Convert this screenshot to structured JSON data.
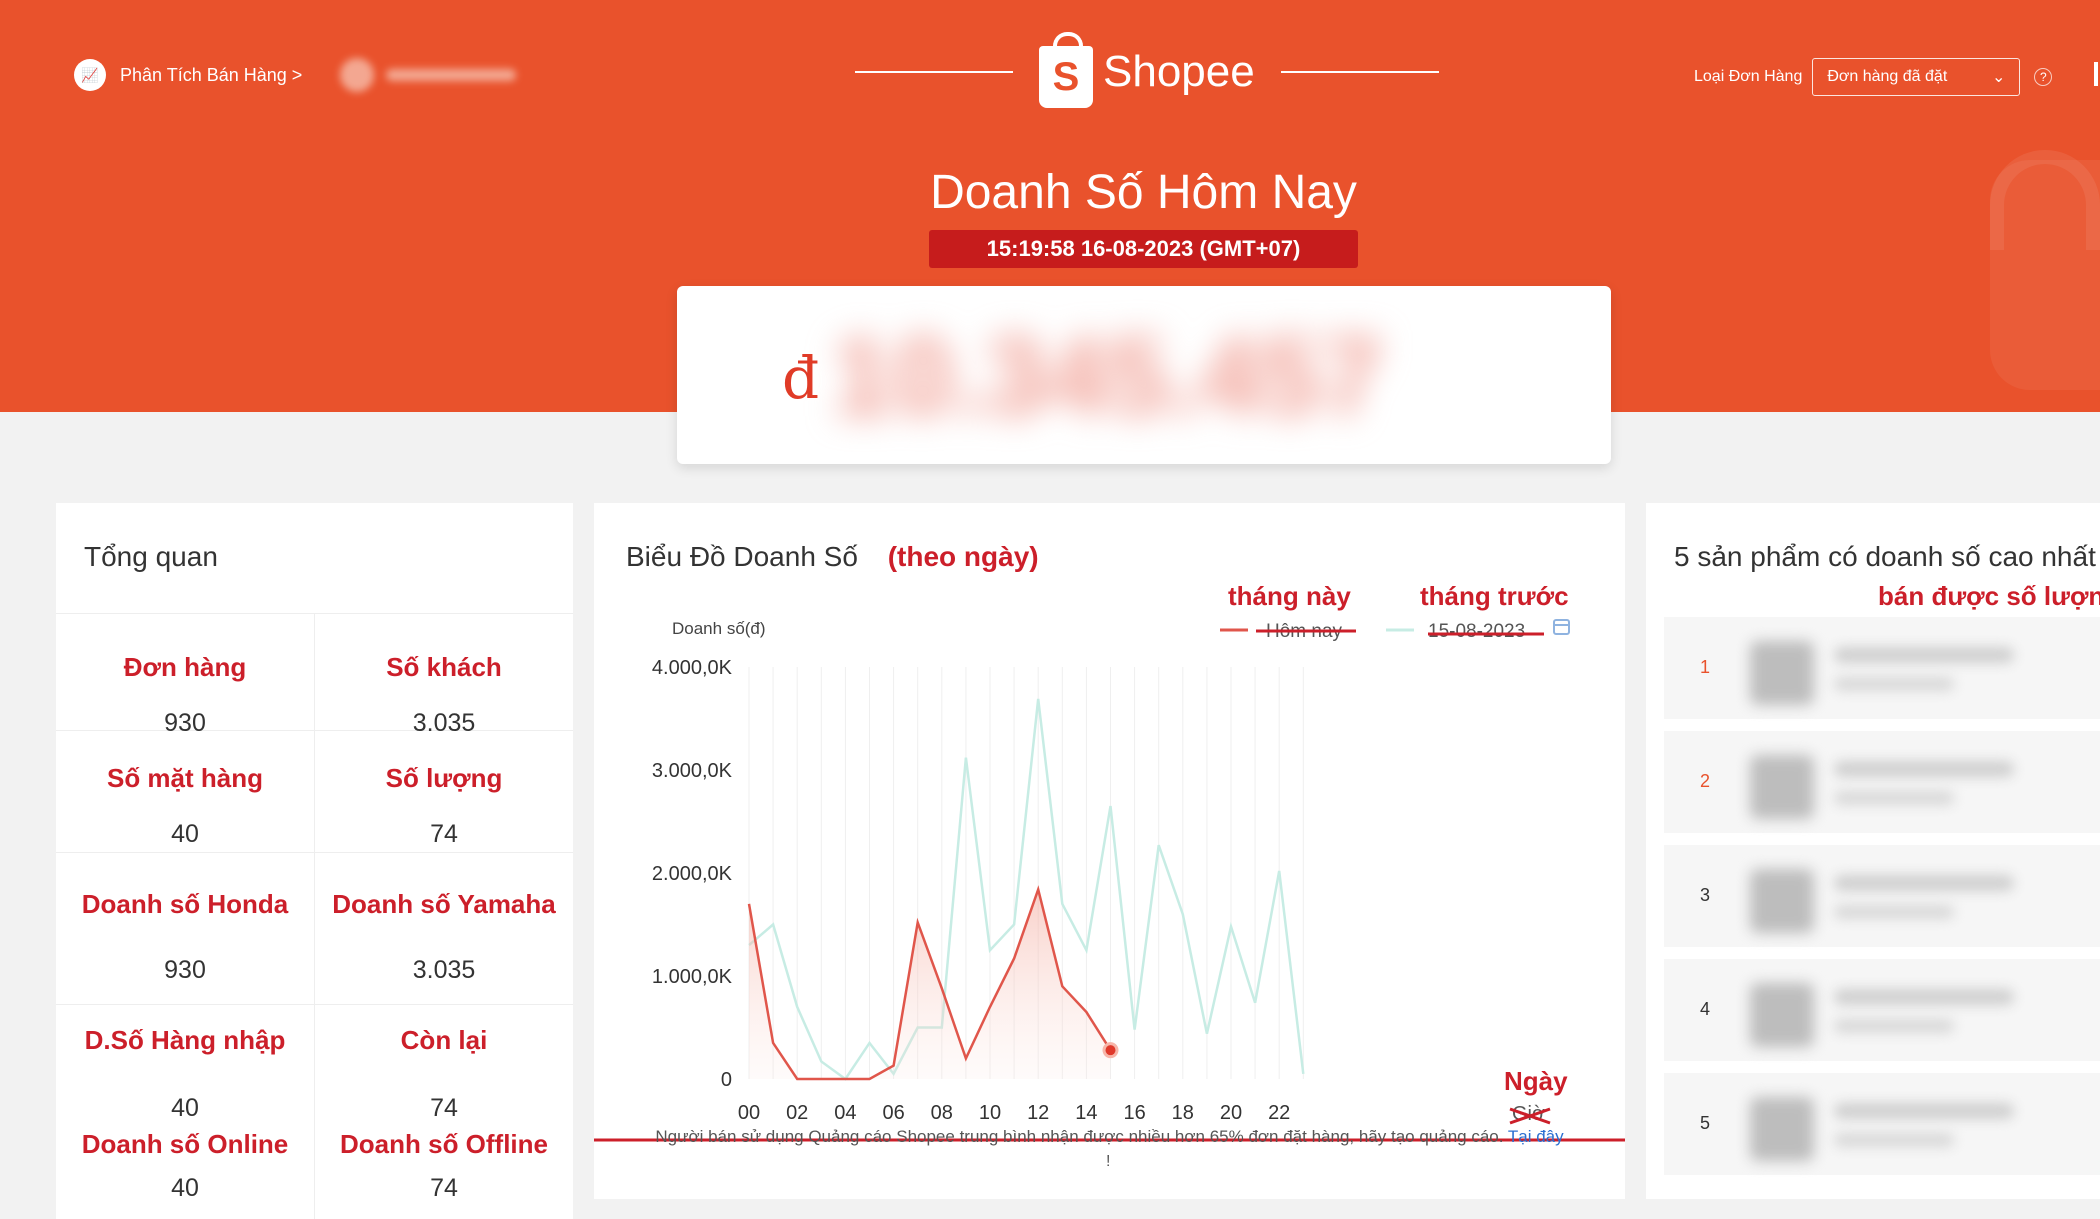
{
  "header": {
    "breadcrumb": "Phân Tích Bán Hàng >",
    "brand": "Shopee",
    "order_type_label": "Loại Đơn Hàng",
    "order_type_value": "Đơn hàng đã đặt",
    "title": "Doanh Số Hôm Nay",
    "timestamp": "15:19:58 16-08-2023 (GMT+07)",
    "currency_symbol": "đ",
    "revenue_value": "10.345.457"
  },
  "colors": {
    "brand": "#e9522c",
    "badge": "#c61c1c",
    "annotation": "#cc1f2a",
    "today_line": "#e0564b",
    "compare_line": "#c7ece4"
  },
  "overview": {
    "title": "Tổng quan",
    "cells": [
      {
        "label": "Đơn hàng",
        "value": "930"
      },
      {
        "label": "Số khách",
        "value": "3.035"
      },
      {
        "label": "Số mặt hàng",
        "value": "40"
      },
      {
        "label": "Số lượng",
        "value": "74"
      },
      {
        "label": "Doanh số Honda",
        "value": "930"
      },
      {
        "label": "Doanh số Yamaha",
        "value": "3.035"
      },
      {
        "label": "D.Số Hàng nhập",
        "value": "40"
      },
      {
        "label": "Còn lại",
        "value": "74"
      },
      {
        "label": "Doanh số Online",
        "value": "40"
      },
      {
        "label": "Doanh số Offline",
        "value": "74"
      }
    ]
  },
  "chart_section": {
    "title": "Biểu Đồ Doanh Số",
    "title_annotation": "(theo ngày)",
    "legend_annotation_1": "tháng này",
    "legend_annotation_2": "tháng trước",
    "xaxis_annotation": "Ngày",
    "note": "Người bán sử dụng Quảng cáo Shopee trung bình nhận được nhiều hơn 65% đơn đặt hàng, hãy tạo quảng cáo.",
    "note_link": "Tại đây",
    "note_bang": "!"
  },
  "chart_data": {
    "type": "line",
    "ylabel": "Doanh số(đ)",
    "ylim": [
      0,
      4000
    ],
    "yticks": [
      "0",
      "1.000,0K",
      "2.000,0K",
      "3.000,0K",
      "4.000,0K"
    ],
    "ytick_values": [
      0,
      1000,
      2000,
      3000,
      4000
    ],
    "xticks": [
      "00",
      "02",
      "04",
      "06",
      "08",
      "10",
      "12",
      "14",
      "16",
      "18",
      "20",
      "22"
    ],
    "xlabel_struck": "Giờ",
    "series": [
      {
        "name": "Hôm nay",
        "x": [
          0,
          1,
          2,
          3,
          4,
          5,
          6,
          7,
          8,
          9,
          10,
          11,
          12,
          13,
          14,
          15
        ],
        "values": [
          1700,
          350,
          0,
          0,
          0,
          0,
          130,
          1520,
          880,
          200,
          700,
          1170,
          1840,
          900,
          650,
          280
        ]
      },
      {
        "name": "15-08-2023",
        "x": [
          0,
          1,
          2,
          3,
          4,
          5,
          6,
          7,
          8,
          9,
          10,
          11,
          12,
          13,
          14,
          15,
          16,
          17,
          18,
          19,
          20,
          21,
          22,
          23
        ],
        "values": [
          1300,
          1500,
          700,
          170,
          0,
          350,
          50,
          500,
          500,
          3120,
          1250,
          1500,
          3690,
          1700,
          1250,
          2650,
          480,
          2270,
          1600,
          440,
          1480,
          740,
          2020,
          50
        ]
      }
    ]
  },
  "top_products": {
    "title": "5 sản phẩm có doanh số cao nhất",
    "annotation": "bán được số lượng",
    "ranks": [
      "1",
      "2",
      "3",
      "4",
      "5"
    ]
  }
}
